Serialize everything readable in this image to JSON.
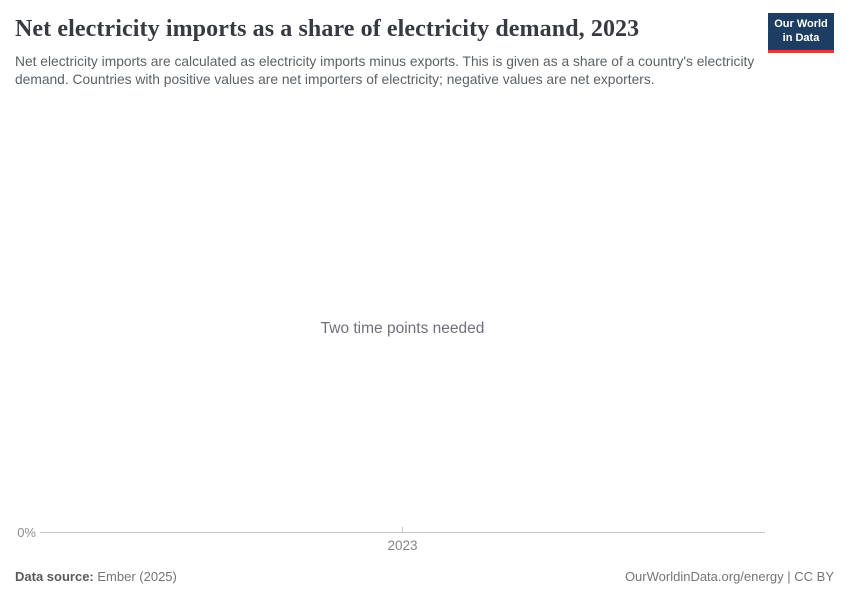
{
  "header": {
    "title": "Net electricity imports as a share of electricity demand, 2023",
    "subtitle": "Net electricity imports are calculated as electricity imports minus exports. This is given as a share of a country's electricity demand. Countries with positive values are net importers of electricity; negative values are net exporters.",
    "logo": {
      "line1": "Our World",
      "line2": "in Data"
    }
  },
  "chart": {
    "message": "Two time points needed",
    "y_axis_label": "0%",
    "x_tick_label": "2023"
  },
  "chart_data": {
    "type": "line",
    "title": "Net electricity imports as a share of electricity demand, 2023",
    "x": [],
    "series": [],
    "x_ticks": [
      "2023"
    ],
    "y_ticks": [
      "0%"
    ],
    "xlabel": "",
    "ylabel": "",
    "annotations": [
      "Two time points needed"
    ],
    "grid": false,
    "legend_position": "none"
  },
  "footer": {
    "source_label": "Data source:",
    "source_value": "Ember (2025)",
    "license": "OurWorldinData.org/energy | CC BY"
  },
  "colors": {
    "logo_background": "#1d3d63",
    "logo_accent": "#d93d3e",
    "title_text": "#383a42",
    "subtitle_text": "#5b6166",
    "message_text": "#6e7179",
    "axis_line": "#c7c7c7",
    "axis_label": "#8e8e8e",
    "background": "#ffffff"
  }
}
